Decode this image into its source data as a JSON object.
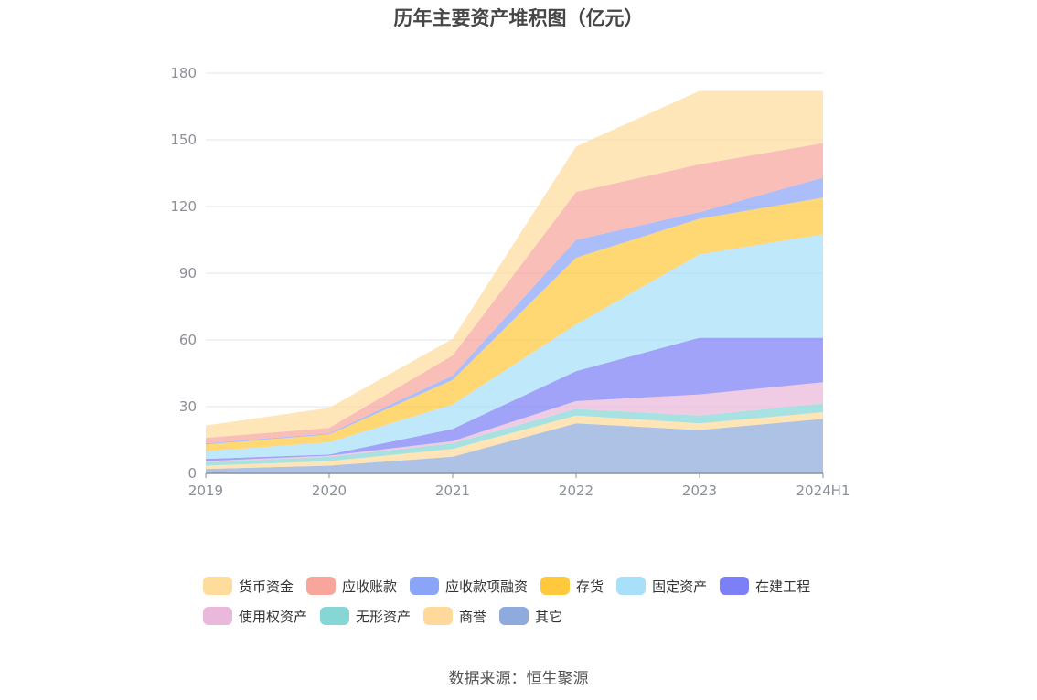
{
  "chart_data": {
    "type": "area",
    "stacked": true,
    "title": "历年主要资产堆积图（亿元）",
    "categories": [
      "2019",
      "2020",
      "2021",
      "2022",
      "2023",
      "2024H1"
    ],
    "ylim": [
      0,
      180
    ],
    "yticks": [
      0,
      30,
      60,
      90,
      120,
      150,
      180
    ],
    "grid": true,
    "legend_position": "bottom",
    "series": [
      {
        "name": "其它",
        "color": "#8FAADC",
        "values": [
          2,
          3.5,
          7.5,
          22.5,
          19.5,
          24.5
        ]
      },
      {
        "name": "商誉",
        "color": "#FFD99A",
        "values": [
          1.5,
          2,
          3.5,
          3.5,
          3,
          3
        ]
      },
      {
        "name": "无形资产",
        "color": "#86D6D6",
        "values": [
          1.5,
          2,
          2.5,
          3,
          3.5,
          4
        ]
      },
      {
        "name": "使用权资产",
        "color": "#EAB8DA",
        "values": [
          0.5,
          0.5,
          1,
          3.5,
          9.5,
          9.5
        ]
      },
      {
        "name": "在建工程",
        "color": "#7C7FF5",
        "values": [
          1,
          0.5,
          5.5,
          13.5,
          25.5,
          20
        ]
      },
      {
        "name": "固定资产",
        "color": "#A8DFF9",
        "values": [
          3.5,
          5.5,
          11,
          21,
          37.5,
          46.5
        ]
      },
      {
        "name": "存货",
        "color": "#FFC83D",
        "values": [
          3,
          3.5,
          11,
          30,
          16,
          16.5
        ]
      },
      {
        "name": "应收款项融资",
        "color": "#8AA5F8",
        "values": [
          0.5,
          0.5,
          2,
          8,
          3,
          9
        ]
      },
      {
        "name": "应收账款",
        "color": "#F8A59C",
        "values": [
          2.5,
          2.5,
          9,
          21.5,
          21.5,
          15.5
        ]
      },
      {
        "name": "货币资金",
        "color": "#FDDC9C",
        "values": [
          5.5,
          9,
          7.5,
          20.5,
          33,
          23.5
        ]
      }
    ],
    "legend_order": [
      "货币资金",
      "应收账款",
      "应收款项融资",
      "存货",
      "固定资产",
      "在建工程",
      "使用权资产",
      "无形资产",
      "商誉",
      "其它"
    ]
  },
  "footer": {
    "source": "数据来源：恒生聚源"
  }
}
